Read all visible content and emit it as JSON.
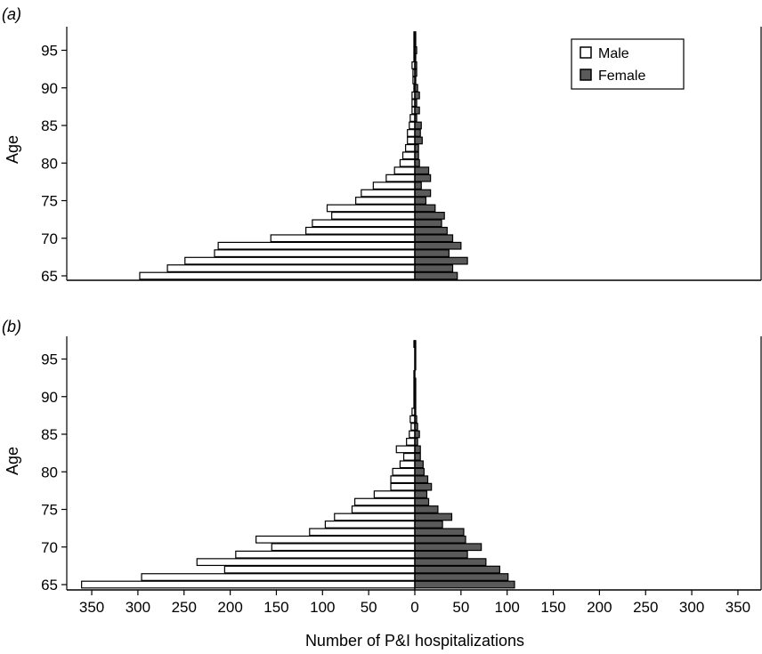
{
  "chart_data": [
    {
      "type": "bar",
      "orientation": "horizontal",
      "panel_label": "(a)",
      "ylabel": "Age",
      "yticks": [
        65,
        70,
        75,
        80,
        85,
        90,
        95
      ],
      "ages": [
        65,
        66,
        67,
        68,
        69,
        70,
        71,
        72,
        73,
        74,
        75,
        76,
        77,
        78,
        79,
        80,
        81,
        82,
        83,
        84,
        85,
        86,
        87,
        88,
        89,
        90,
        91,
        92,
        93,
        94,
        95,
        96,
        97
      ],
      "series": [
        {
          "name": "Male",
          "values": [
            298,
            268,
            249,
            217,
            213,
            156,
            118,
            111,
            90,
            95,
            64,
            58,
            45,
            31,
            22,
            16,
            13,
            10,
            8,
            8,
            6,
            5,
            3,
            3,
            3,
            1,
            2,
            2,
            3,
            1,
            1,
            1,
            1
          ]
        },
        {
          "name": "Female",
          "values": [
            46,
            41,
            57,
            37,
            50,
            41,
            35,
            29,
            32,
            22,
            12,
            17,
            7,
            17,
            15,
            5,
            4,
            4,
            8,
            6,
            7,
            2,
            5,
            2,
            5,
            3,
            1,
            2,
            2,
            1,
            2,
            1,
            1
          ]
        }
      ],
      "legend": {
        "placement": "top-right",
        "entries": [
          "Male",
          "Female"
        ]
      },
      "colors": {
        "Male": "#ffffff",
        "Female": "#5a5a5a"
      }
    },
    {
      "type": "bar",
      "orientation": "horizontal",
      "panel_label": "(b)",
      "ylabel": "Age",
      "yticks": [
        65,
        70,
        75,
        80,
        85,
        90,
        95
      ],
      "ages": [
        65,
        66,
        67,
        68,
        69,
        70,
        71,
        72,
        73,
        74,
        75,
        76,
        77,
        78,
        79,
        80,
        81,
        82,
        83,
        84,
        85,
        86,
        87,
        88,
        89,
        90,
        91,
        92,
        93,
        94,
        95,
        96,
        97
      ],
      "series": [
        {
          "name": "Male",
          "values": [
            361,
            296,
            206,
            236,
            194,
            155,
            172,
            114,
            97,
            87,
            68,
            65,
            44,
            26,
            26,
            24,
            16,
            12,
            20,
            9,
            6,
            4,
            5,
            3,
            1,
            1,
            1,
            1,
            1,
            0,
            0,
            0,
            1
          ]
        },
        {
          "name": "Female",
          "values": [
            108,
            101,
            92,
            77,
            57,
            72,
            55,
            53,
            30,
            40,
            25,
            15,
            13,
            18,
            14,
            10,
            9,
            6,
            6,
            3,
            5,
            3,
            2,
            1,
            1,
            1,
            1,
            1,
            0,
            1,
            1,
            1,
            1
          ]
        }
      ],
      "legend": null,
      "colors": {
        "Male": "#ffffff",
        "Female": "#5a5a5a"
      }
    }
  ],
  "x_axis": {
    "ticks": [
      -350,
      -300,
      -250,
      -200,
      -150,
      -100,
      -50,
      0,
      50,
      100,
      150,
      200,
      250,
      300,
      350
    ],
    "tick_labels": [
      "350",
      "300",
      "250",
      "200",
      "150",
      "100",
      "50",
      "0",
      "50",
      "100",
      "150",
      "200",
      "250",
      "300",
      "350"
    ],
    "range": [
      -375,
      375
    ],
    "label": "Number of P&I hospitalizations"
  },
  "legend_labels": {
    "male": "Male",
    "female": "Female"
  }
}
